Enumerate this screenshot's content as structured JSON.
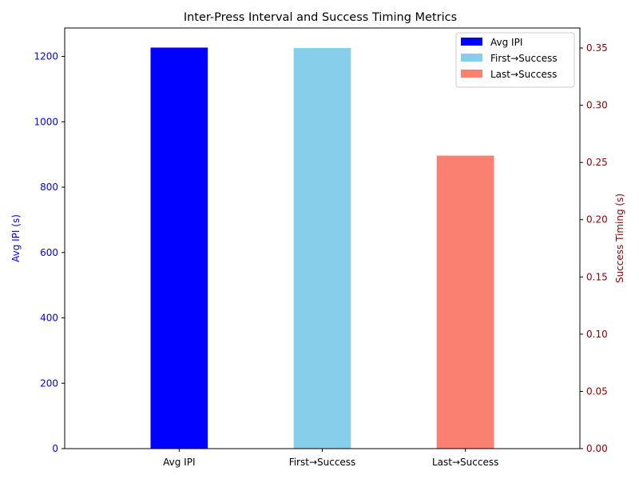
{
  "chart_data": {
    "type": "bar",
    "title": "Inter-Press Interval and Success Timing Metrics",
    "categories": [
      "Avg IPI",
      "First→Success",
      "Last→Success"
    ],
    "series": [
      {
        "name": "Avg IPI",
        "axis": "left",
        "category": "Avg IPI",
        "value": 1227,
        "color": "#0000ff"
      },
      {
        "name": "First→Success",
        "axis": "right",
        "category": "First→Success",
        "value": 0.35,
        "color": "#87ceeb"
      },
      {
        "name": "Last→Success",
        "axis": "right",
        "category": "Last→Success",
        "value": 0.256,
        "color": "#fa8072"
      }
    ],
    "left_axis": {
      "label": "Avg IPI (s)",
      "color": "#0000ff",
      "lim": [
        0,
        1287
      ],
      "ticks": [
        0,
        200,
        400,
        600,
        800,
        1000,
        1200
      ]
    },
    "right_axis": {
      "label": "Success Timing (s)",
      "color": "#8b0000",
      "lim": [
        0,
        0.3675
      ],
      "ticks": [
        0.0,
        0.05,
        0.1,
        0.15,
        0.2,
        0.25,
        0.3,
        0.35
      ],
      "tick_decimals": 2
    },
    "legend": {
      "placement": "top-right",
      "entries": [
        "Avg IPI",
        "First→Success",
        "Last→Success"
      ]
    },
    "grid": false
  }
}
